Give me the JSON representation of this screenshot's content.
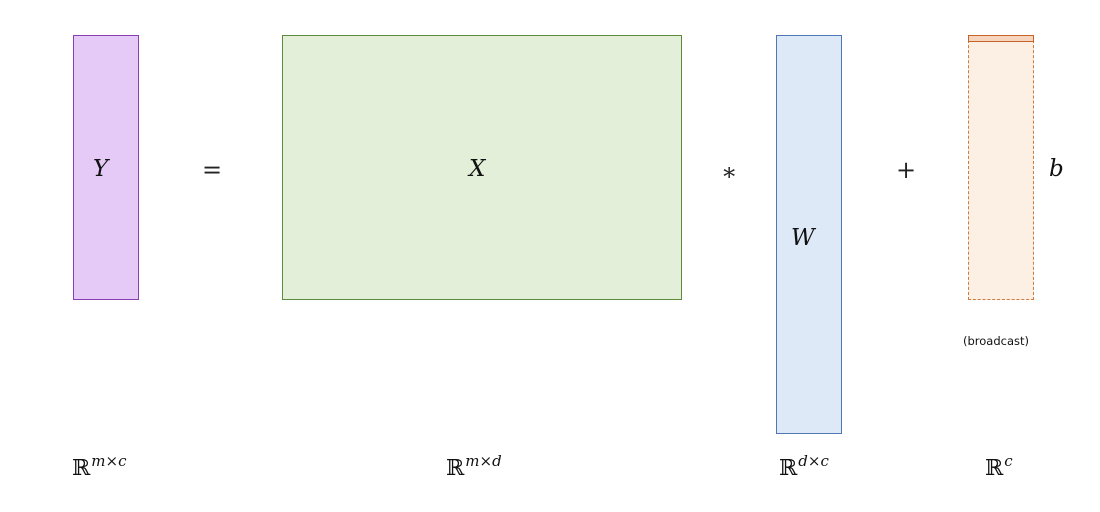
{
  "matrices": {
    "y": {
      "label": "Y",
      "dimension_base": "ℝ",
      "dimension_exp": "m×c"
    },
    "x": {
      "label": "X",
      "dimension_base": "ℝ",
      "dimension_exp": "m×d"
    },
    "w": {
      "label": "W",
      "dimension_base": "ℝ",
      "dimension_exp": "d×c"
    },
    "b": {
      "label": "b",
      "dimension_base": "ℝ",
      "dimension_exp": "c",
      "note": "(broadcast)"
    }
  },
  "operators": {
    "equals": "=",
    "multiply": "∗",
    "plus": "+"
  },
  "colors": {
    "y_fill": "#e5c9f7",
    "y_border": "#8a3fb0",
    "x_fill": "#e3efd8",
    "x_border": "#5e8a3b",
    "w_fill": "#dde9f6",
    "w_border": "#4f78b5",
    "b_fill": "#fcefe4",
    "b_border": "#cf7a40"
  }
}
